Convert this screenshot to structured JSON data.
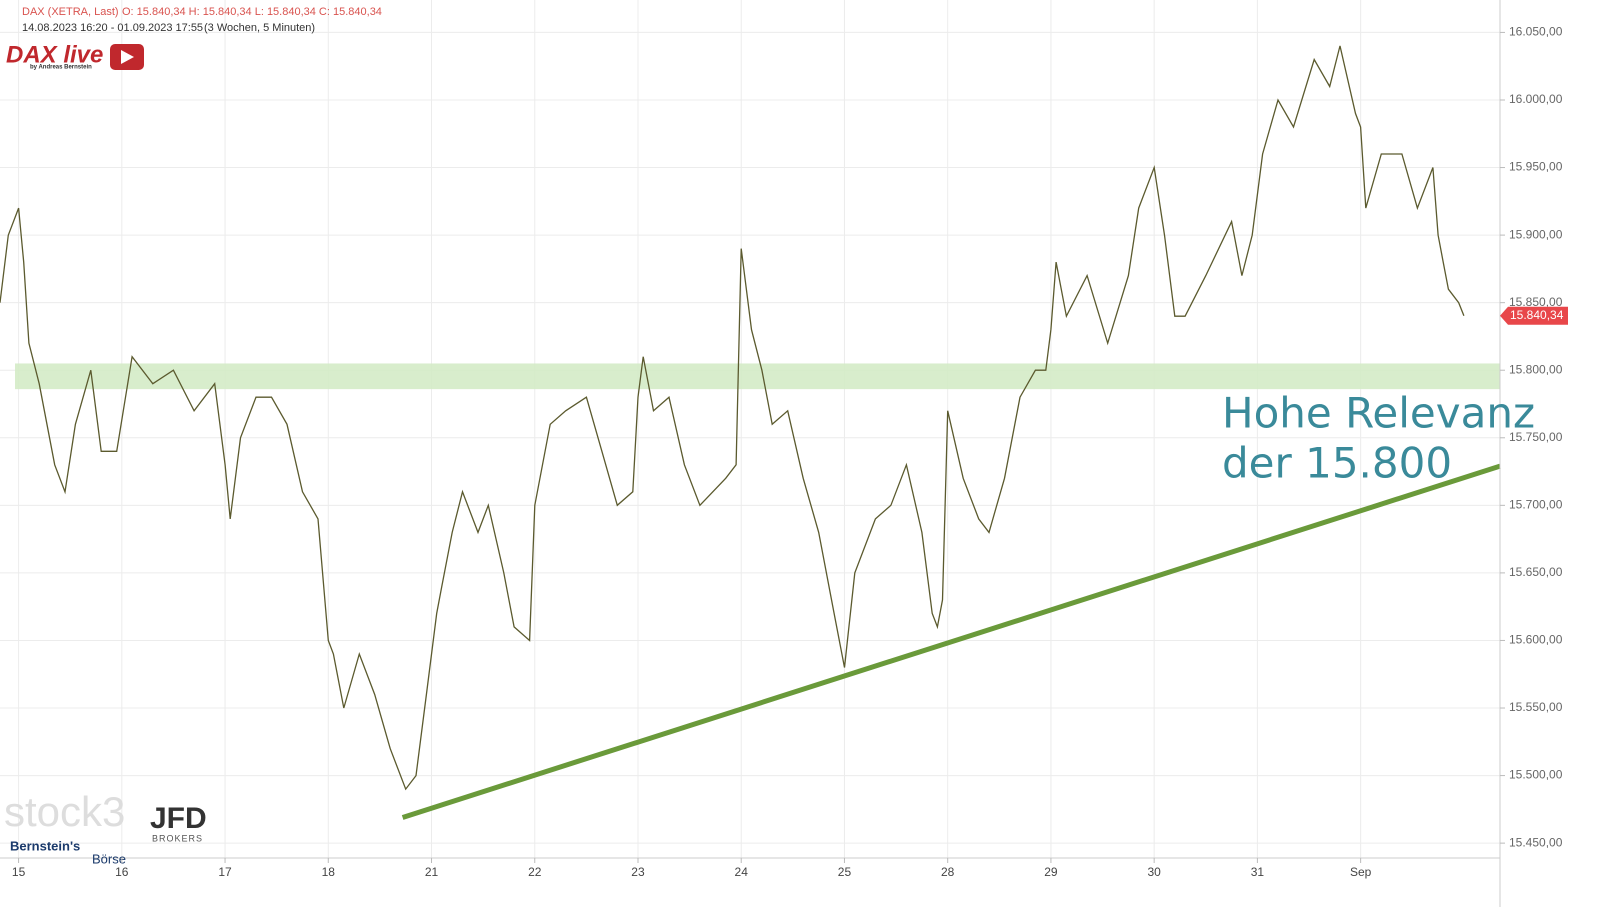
{
  "chart_data": {
    "type": "line",
    "instrument": "DAX (XETRA, Last)",
    "ohlc": "O: 15.840,34  H: 15.840,34  L: 15.840,34  C: 15.840,34",
    "period": "14.08.2023 16:20 - 01.09.2023 17:55",
    "interval": "(3 Wochen, 5 Minuten)",
    "logos": {
      "dax_live": "DAX live",
      "dax_live_sub": "by Andreas Bernstein",
      "stock3": "stock3",
      "jfd": "JFD",
      "jfd_sub": "BROKERS",
      "bernstein": "Bernstein's",
      "boerse": "Börse"
    },
    "annotation": [
      "Hohe Relevanz",
      "der 15.800"
    ],
    "color": "#5b5a2e",
    "x": [
      -0.18,
      -0.1,
      0,
      0.05,
      0.1,
      0.2,
      0.35,
      0.45,
      0.55,
      0.7,
      0.8,
      0.95,
      1.1,
      1.3,
      1.5,
      1.7,
      1.9,
      2,
      2.05,
      2.15,
      2.3,
      2.45,
      2.6,
      2.75,
      2.9,
      3,
      3.05,
      3.15,
      3.3,
      3.45,
      3.6,
      3.75,
      3.85,
      3.95,
      4.05,
      4.1,
      4.2,
      4.3,
      4.45,
      4.55,
      4.7,
      4.8,
      4.95,
      5,
      5.15,
      5.3,
      5.5,
      5.65,
      5.8,
      5.95,
      6,
      6.05,
      6.15,
      6.3,
      6.45,
      6.6,
      6.85,
      6.95,
      7,
      7.1,
      7.2,
      7.3,
      7.45,
      7.6,
      7.75,
      7.9,
      8,
      8.1,
      8.3,
      8.45,
      8.6,
      8.75,
      8.85,
      8.9,
      8.95,
      9,
      9.15,
      9.3,
      9.4,
      9.55,
      9.7,
      9.85,
      9.95,
      10,
      10.05,
      10.15,
      10.35,
      10.55,
      10.75,
      10.85,
      11,
      11.1,
      11.2,
      11.3,
      11.5,
      11.75,
      11.85,
      11.95,
      12.05,
      12.2,
      12.35,
      12.55,
      12.7,
      12.8,
      12.95,
      13,
      13.05,
      13.2,
      13.4,
      13.55,
      13.7,
      13.75,
      13.8,
      13.85,
      13.95,
      14
    ],
    "values": [
      15850,
      15900,
      15920,
      15880,
      15820,
      15790,
      15730,
      15710,
      15760,
      15800,
      15740,
      15740,
      15810,
      15790,
      15800,
      15770,
      15790,
      15730,
      15690,
      15750,
      15780,
      15780,
      15760,
      15710,
      15690,
      15600,
      15590,
      15550,
      15590,
      15560,
      15520,
      15490,
      15500,
      15560,
      15620,
      15640,
      15680,
      15710,
      15680,
      15700,
      15650,
      15610,
      15600,
      15700,
      15760,
      15770,
      15780,
      15740,
      15700,
      15710,
      15780,
      15810,
      15770,
      15780,
      15730,
      15700,
      15720,
      15730,
      15890,
      15830,
      15800,
      15760,
      15770,
      15720,
      15680,
      15620,
      15580,
      15650,
      15690,
      15700,
      15730,
      15680,
      15620,
      15610,
      15630,
      15770,
      15720,
      15690,
      15680,
      15720,
      15780,
      15800,
      15800,
      15830,
      15880,
      15840,
      15870,
      15820,
      15870,
      15920,
      15950,
      15900,
      15840,
      15840,
      15870,
      15910,
      15870,
      15900,
      15960,
      16000,
      15980,
      16030,
      16010,
      16040,
      15990,
      15980,
      15920,
      15960,
      15960,
      15920,
      15950,
      15900,
      15880,
      15860,
      15850,
      15840.34
    ],
    "last_value": {
      "value": 15840.34,
      "label": "15.840,34"
    },
    "zone": [
      15786,
      15805
    ],
    "zone_color": "#d4ebc6",
    "trendline": {
      "x": [
        3.72,
        14.35
      ],
      "values": [
        15469,
        15729
      ],
      "color": "#6a9a3a"
    },
    "xlim": [
      -0.18,
      14.35
    ],
    "ylim": [
      15439,
      16074
    ],
    "xticks": [
      {
        "value": 0,
        "label": "15"
      },
      {
        "value": 1,
        "label": "16"
      },
      {
        "value": 2,
        "label": "17"
      },
      {
        "value": 3,
        "label": "18"
      },
      {
        "value": 4,
        "label": "21"
      },
      {
        "value": 5,
        "label": "22"
      },
      {
        "value": 6,
        "label": "23"
      },
      {
        "value": 7,
        "label": "24"
      },
      {
        "value": 8,
        "label": "25"
      },
      {
        "value": 9,
        "label": "28"
      },
      {
        "value": 10,
        "label": "29"
      },
      {
        "value": 11,
        "label": "30"
      },
      {
        "value": 12,
        "label": "31"
      },
      {
        "value": 13,
        "label": "Sep"
      }
    ],
    "yticks": [
      {
        "value": 15450,
        "label": "15.450,00"
      },
      {
        "value": 15500,
        "label": "15.500,00"
      },
      {
        "value": 15550,
        "label": "15.550,00"
      },
      {
        "value": 15600,
        "label": "15.600,00"
      },
      {
        "value": 15650,
        "label": "15.650,00"
      },
      {
        "value": 15700,
        "label": "15.700,00"
      },
      {
        "value": 15750,
        "label": "15.750,00"
      },
      {
        "value": 15800,
        "label": "15.800,00"
      },
      {
        "value": 15850,
        "label": "15.850,00"
      },
      {
        "value": 15900,
        "label": "15.900,00"
      },
      {
        "value": 15950,
        "label": "15.950,00"
      },
      {
        "value": 16000,
        "label": "16.000,00"
      },
      {
        "value": 16050,
        "label": "16.050,00"
      }
    ],
    "grid": true
  }
}
